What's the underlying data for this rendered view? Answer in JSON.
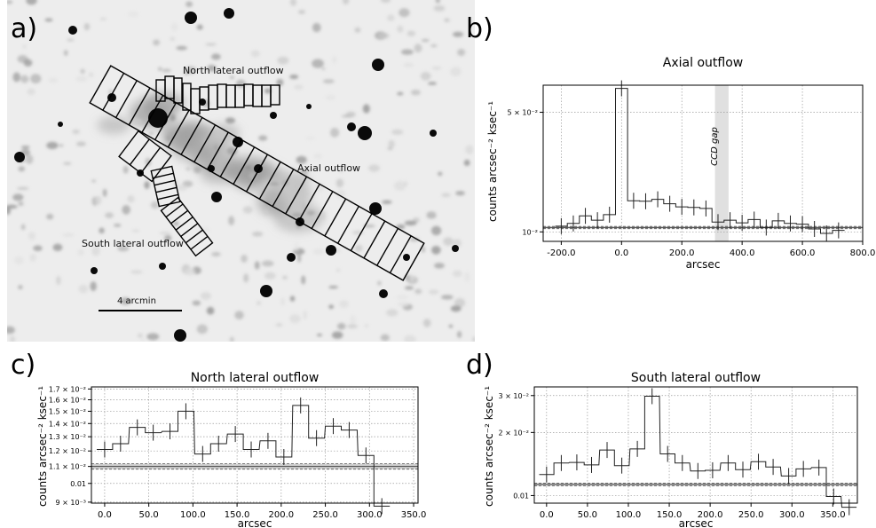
{
  "panel_labels": {
    "a": "a)",
    "b": "b)",
    "c": "c)",
    "d": "d)"
  },
  "sky_image": {
    "labels": {
      "north": "North lateral outflow",
      "axial": "Axial outflow",
      "south": "South lateral outflow",
      "scale": "4 arcmin"
    }
  },
  "chart_data": [
    {
      "type": "line",
      "panel": "b",
      "title": "Axial outflow",
      "xlabel": "arcsec",
      "ylabel": "counts arcsec⁻² ksec⁻¹",
      "yscale": "log",
      "xlim": [
        -260,
        800
      ],
      "ylim": [
        0.0088,
        0.072
      ],
      "xticks": [
        -200,
        0,
        200,
        400,
        600,
        800
      ],
      "xtick_labels": [
        "-200.0",
        "0.0",
        "200.0",
        "400.0",
        "600.0",
        "800.0"
      ],
      "yticks": [
        0.01,
        0.05
      ],
      "ytick_labels": [
        "10⁻²",
        "5 × 10⁻²"
      ],
      "grid": true,
      "annotation": "CCD gap",
      "band": [
        310,
        355
      ],
      "background_level": 0.0106,
      "x": [
        -200,
        -160,
        -120,
        -80,
        -40,
        0,
        40,
        80,
        120,
        160,
        200,
        240,
        280,
        320,
        360,
        400,
        440,
        480,
        520,
        560,
        600,
        640,
        680,
        720
      ],
      "y": [
        0.0108,
        0.0112,
        0.0124,
        0.0117,
        0.0126,
        0.069,
        0.0152,
        0.0151,
        0.0155,
        0.0146,
        0.014,
        0.0139,
        0.0137,
        0.0114,
        0.0117,
        0.0113,
        0.0118,
        0.0106,
        0.0116,
        0.0112,
        0.0111,
        0.0104,
        0.0098,
        0.0102
      ]
    },
    {
      "type": "line",
      "panel": "c",
      "title": "North lateral outflow",
      "xlabel": "arcsec",
      "ylabel": "counts arcsec⁻² ksec⁻¹",
      "yscale": "log",
      "xlim": [
        -15,
        355
      ],
      "ylim": [
        0.00895,
        0.0172
      ],
      "xticks": [
        0,
        50,
        100,
        150,
        200,
        250,
        300,
        350
      ],
      "xtick_labels": [
        "0.0",
        "50.0",
        "100.0",
        "150.0",
        "200.0",
        "250.0",
        "300.0",
        "350.0"
      ],
      "yticks": [
        0.009,
        0.01,
        0.011,
        0.012,
        0.013,
        0.014,
        0.015,
        0.016,
        0.017
      ],
      "ytick_labels": [
        "9 × 10⁻³",
        "0.01",
        "1.1 × 10⁻²",
        "1.2 × 10⁻²",
        "1.3 × 10⁻²",
        "1.4 × 10⁻²",
        "1.5 × 10⁻²",
        "1.6 × 10⁻²",
        "1.7 × 10⁻²"
      ],
      "grid": true,
      "background_level": 0.011,
      "x": [
        0,
        18,
        37,
        55,
        74,
        92,
        111,
        129,
        148,
        166,
        185,
        203,
        222,
        240,
        259,
        277,
        296,
        314
      ],
      "y": [
        0.0121,
        0.0125,
        0.0137,
        0.0133,
        0.0134,
        0.015,
        0.0118,
        0.0125,
        0.0132,
        0.0121,
        0.0127,
        0.0116,
        0.0155,
        0.0129,
        0.0138,
        0.0135,
        0.0117,
        0.0088
      ]
    },
    {
      "type": "line",
      "panel": "d",
      "title": "South lateral outflow",
      "xlabel": "arcsec",
      "ylabel": "counts arcsec⁻² ksec⁻¹",
      "yscale": "log",
      "xlim": [
        -15,
        380
      ],
      "ylim": [
        0.0092,
        0.033
      ],
      "xticks": [
        0,
        50,
        100,
        150,
        200,
        250,
        300,
        350
      ],
      "xtick_labels": [
        "0.0",
        "50.0",
        "100.0",
        "150.0",
        "200.0",
        "250.0",
        "300.0",
        "350.0"
      ],
      "yticks": [
        0.01,
        0.02,
        0.03
      ],
      "ytick_labels": [
        "0.01",
        "2 × 10⁻²",
        "3 × 10⁻²"
      ],
      "grid": true,
      "background_level": 0.0113,
      "x": [
        0,
        18,
        37,
        55,
        74,
        92,
        111,
        129,
        148,
        166,
        185,
        203,
        222,
        240,
        259,
        277,
        296,
        314,
        333,
        351,
        370
      ],
      "y": [
        0.0126,
        0.0143,
        0.0144,
        0.014,
        0.0165,
        0.0139,
        0.0167,
        0.0298,
        0.0158,
        0.0143,
        0.0131,
        0.0132,
        0.0143,
        0.0133,
        0.0145,
        0.0137,
        0.0124,
        0.0134,
        0.0136,
        0.0099,
        0.0088
      ]
    }
  ]
}
